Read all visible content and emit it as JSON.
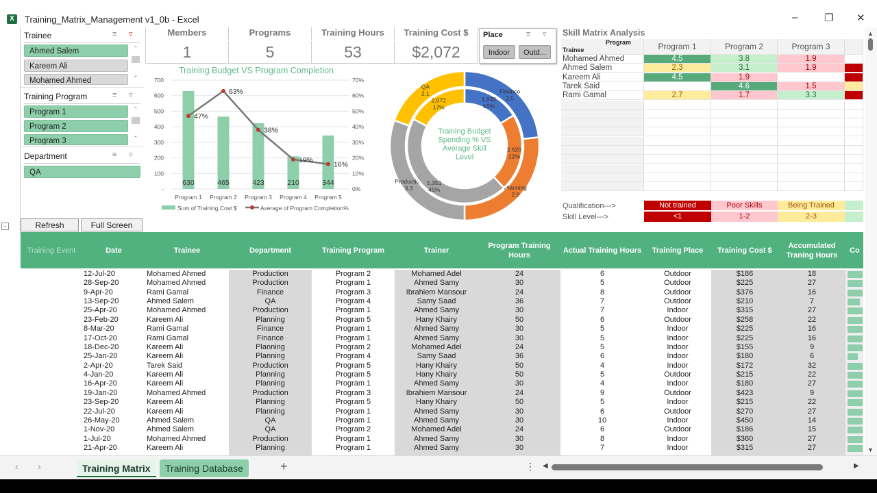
{
  "window": {
    "title": "Training_Matrix_Management v1_0b - Excel",
    "icon": "excel-icon"
  },
  "slicers": [
    {
      "title": "Trainee",
      "items": [
        {
          "label": "Ahmed Salem",
          "selected": true
        },
        {
          "label": "Kareem Ali",
          "selected": false
        },
        {
          "label": "Mohamed Ahmed",
          "selected": false
        }
      ]
    },
    {
      "title": "Training Program",
      "items": [
        {
          "label": "Program 1",
          "selected": true
        },
        {
          "label": "Program 2",
          "selected": true
        },
        {
          "label": "Program 3",
          "selected": true
        }
      ]
    },
    {
      "title": "Department",
      "items": [
        {
          "label": "QA",
          "selected": true
        }
      ]
    }
  ],
  "buttons": {
    "refresh": "Refresh",
    "full_screen": "Full Screen"
  },
  "kpis": [
    {
      "label": "Members",
      "value": "1"
    },
    {
      "label": "Programs",
      "value": "5"
    },
    {
      "label": "Training Hours",
      "value": "53"
    },
    {
      "label": "Training Cost $",
      "value": "$2,072"
    }
  ],
  "place_slicer": {
    "title": "Place",
    "items": [
      "Indoor",
      "Outd..."
    ]
  },
  "chart_data": [
    {
      "type": "bar+line",
      "title": "Training Budget VS Program Completion",
      "categories": [
        "Program 1",
        "Program 2",
        "Program 3",
        "Program 4",
        "Program 5"
      ],
      "series": [
        {
          "name": "Sum of Training Cost  $",
          "type": "bar",
          "values": [
            630,
            465,
            423,
            210,
            344
          ],
          "color": "#8dcfaa"
        },
        {
          "name": "Average of Program Completion%",
          "type": "line",
          "values": [
            0.47,
            0.63,
            0.38,
            0.19,
            0.16
          ],
          "labels": [
            "47%",
            "63%",
            "38%",
            "19%",
            "16%"
          ],
          "color": "#777777"
        }
      ],
      "y_left": {
        "range": [
          0,
          700
        ],
        "ticks": [
          "-",
          "100",
          "200",
          "300",
          "400",
          "500",
          "600",
          "700"
        ]
      },
      "y_right": {
        "range": [
          0,
          0.7
        ],
        "ticks": [
          "0%",
          "10%",
          "20%",
          "30%",
          "40%",
          "50%",
          "60%",
          "70%"
        ]
      },
      "grid": true,
      "legend": "bottom"
    },
    {
      "type": "doughnut",
      "title": "Training Budget Spending % VS Average Skill Level",
      "categories": [
        "Finance",
        "Planning",
        "Production",
        "QA"
      ],
      "colors": [
        "#4472c4",
        "#ed7d31",
        "#a5a5a5",
        "#ffc000"
      ],
      "outer": {
        "values": [
          2.5,
          2.9,
          3.3,
          2.1
        ],
        "labels": [
          "2.5",
          "2.9",
          "3.3",
          "2.1"
        ]
      },
      "inner": {
        "values": [
          1930,
          2620,
          5351,
          2072
        ],
        "labels": [
          "1,930",
          "2,620",
          "5,351",
          "2,072"
        ],
        "percents": [
          "16%",
          "22%",
          "45%",
          "17%"
        ]
      }
    }
  ],
  "skill_matrix": {
    "title": "Skill Matrix Analysis",
    "corner_top": "Program",
    "corner_bottom": "Trainee",
    "programs": [
      "Program 1",
      "Program 2",
      "Program 3"
    ],
    "rows": [
      {
        "trainee": "Mohamed Ahmed",
        "values": [
          "4.5",
          "3.8",
          "1.9",
          ""
        ]
      },
      {
        "trainee": "Ahmed Salem",
        "values": [
          "2.3",
          "3.1",
          "1.9",
          "r"
        ]
      },
      {
        "trainee": "Kareem Ali",
        "values": [
          "4.5",
          "1.9",
          "",
          "r"
        ]
      },
      {
        "trainee": "Tarek Said",
        "values": [
          "",
          "4.6",
          "1.5",
          "y"
        ]
      },
      {
        "trainee": "Rami Gamal",
        "values": [
          "2.7",
          "1.7",
          "3.3",
          "r"
        ]
      }
    ],
    "legend": {
      "qualification_label": "Qualification--->",
      "skill_label": "Skill Level--->",
      "items": [
        {
          "qualification": "Not trained",
          "level": "<1",
          "color": "#c00000"
        },
        {
          "qualification": "Poor Skills",
          "level": "1-2",
          "color": "#ffc7ce"
        },
        {
          "qualification": "Being Trained",
          "level": "2-3",
          "color": "#ffeb9c"
        },
        {
          "qualification": "",
          "level": "",
          "color": "#c6efce"
        }
      ]
    }
  },
  "table": {
    "headers": [
      "Training Event",
      "Date",
      "Trainee",
      "Department",
      "Training Program",
      "Trainer",
      "Program Training Hours",
      "Actual Training Hours",
      "Training Place",
      "Training Cost $",
      "Accumulated Traning Hours",
      "Co"
    ],
    "rows": [
      [
        "12-Jul-20",
        "Mohamed Ahmed",
        "Production",
        "Program 2",
        "Mohamed Adel",
        "24",
        "6",
        "Outdoor",
        "$186",
        "18",
        1
      ],
      [
        "28-Sep-20",
        "Mohamed Ahmed",
        "Production",
        "Program 1",
        "Ahmed Samy",
        "30",
        "5",
        "Outdoor",
        "$225",
        "27",
        1
      ],
      [
        "9-Apr-20",
        "Rami Gamal",
        "Finance",
        "Program 3",
        "Ibrahiem Mansour",
        "24",
        "8",
        "Outdoor",
        "$376",
        "16",
        1
      ],
      [
        "13-Sep-20",
        "Ahmed Salem",
        "QA",
        "Program 4",
        "Samy Saad",
        "36",
        "7",
        "Outdoor",
        "$210",
        "7",
        0.8
      ],
      [
        "25-Apr-20",
        "Mohamed Ahmed",
        "Production",
        "Program 1",
        "Ahmed Samy",
        "30",
        "7",
        "Indoor",
        "$315",
        "27",
        1
      ],
      [
        "23-Feb-20",
        "Kareem Ali",
        "Planning",
        "Program 5",
        "Hany Khairy",
        "50",
        "6",
        "Outdoor",
        "$258",
        "22",
        1
      ],
      [
        "8-Mar-20",
        "Rami Gamal",
        "Finance",
        "Program 1",
        "Ahmed Samy",
        "30",
        "5",
        "Indoor",
        "$225",
        "16",
        1
      ],
      [
        "17-Oct-20",
        "Rami Gamal",
        "Finance",
        "Program 1",
        "Ahmed Samy",
        "30",
        "5",
        "Indoor",
        "$225",
        "16",
        1
      ],
      [
        "18-Dec-20",
        "Kareem Ali",
        "Planning",
        "Program 2",
        "Mohamed Adel",
        "24",
        "5",
        "Indoor",
        "$155",
        "9",
        1
      ],
      [
        "25-Jan-20",
        "Kareem Ali",
        "Planning",
        "Program 4",
        "Samy Saad",
        "36",
        "6",
        "Indoor",
        "$180",
        "6",
        0.7
      ],
      [
        "2-Apr-20",
        "Tarek Said",
        "Production",
        "Program 5",
        "Hany Khairy",
        "50",
        "4",
        "Indoor",
        "$172",
        "32",
        1
      ],
      [
        "4-Jan-20",
        "Kareem Ali",
        "Planning",
        "Program 5",
        "Hany Khairy",
        "50",
        "5",
        "Outdoor",
        "$215",
        "22",
        1
      ],
      [
        "16-Apr-20",
        "Kareem Ali",
        "Planning",
        "Program 1",
        "Ahmed Samy",
        "30",
        "4",
        "Indoor",
        "$180",
        "27",
        1
      ],
      [
        "19-Jan-20",
        "Mohamed Ahmed",
        "Production",
        "Program 3",
        "Ibrahiem Mansour",
        "24",
        "9",
        "Outdoor",
        "$423",
        "9",
        1
      ],
      [
        "23-Sep-20",
        "Kareem Ali",
        "Planning",
        "Program 5",
        "Hany Khairy",
        "50",
        "5",
        "Indoor",
        "$215",
        "22",
        1
      ],
      [
        "22-Jul-20",
        "Kareem Ali",
        "Planning",
        "Program 1",
        "Ahmed Samy",
        "30",
        "6",
        "Outdoor",
        "$270",
        "27",
        1
      ],
      [
        "26-May-20",
        "Ahmed Salem",
        "QA",
        "Program 1",
        "Ahmed Samy",
        "30",
        "10",
        "Indoor",
        "$450",
        "14",
        1
      ],
      [
        "1-Nov-20",
        "Ahmed Salem",
        "QA",
        "Program 2",
        "Mohamed Adel",
        "24",
        "6",
        "Outdoor",
        "$186",
        "15",
        1
      ],
      [
        "1-Jul-20",
        "Mohamed Ahmed",
        "Production",
        "Program 1",
        "Ahmed Samy",
        "30",
        "8",
        "Indoor",
        "$360",
        "27",
        1
      ],
      [
        "21-Apr-20",
        "Kareem Ali",
        "Planning",
        "Program 1",
        "Ahmed Samy",
        "30",
        "7",
        "Indoor",
        "$315",
        "27",
        1
      ]
    ]
  },
  "sheet_tabs": [
    {
      "label": "Training Matrix",
      "active": true
    },
    {
      "label": "Training Database",
      "active": false
    }
  ],
  "add_sheet": "+"
}
